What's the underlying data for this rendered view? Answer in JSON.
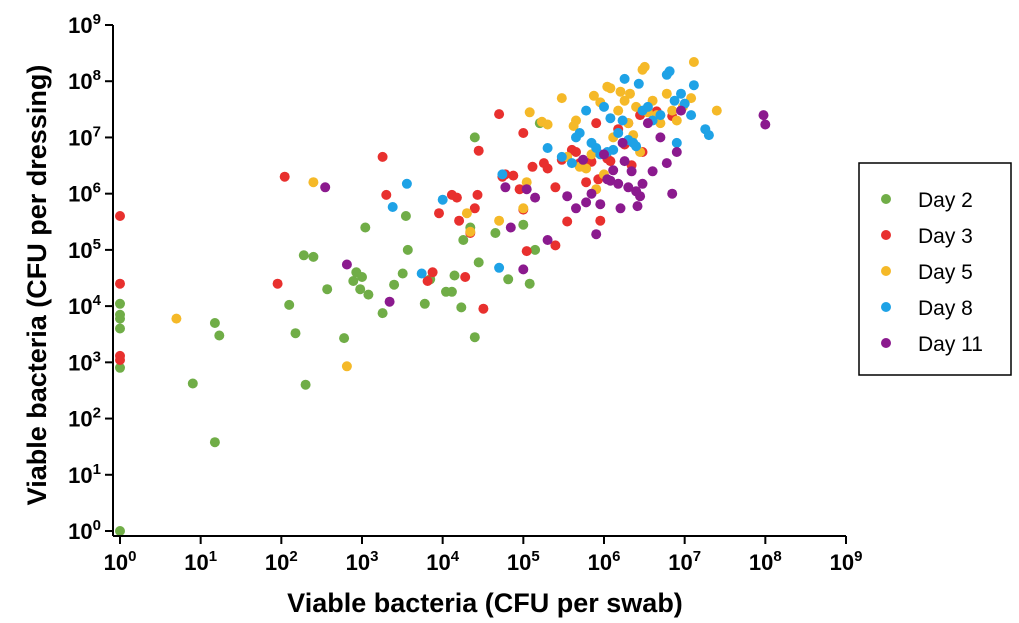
{
  "chart_data": {
    "type": "scatter",
    "xlabel": "Viable bacteria (CFU per swab)",
    "ylabel": "Viable bacteria (CFU per dressing)",
    "xscale": "log",
    "yscale": "log",
    "xlim": [
      1,
      1000000000
    ],
    "ylim": [
      1,
      1000000000
    ],
    "x_ticks": [
      "10^0",
      "10^1",
      "10^2",
      "10^3",
      "10^4",
      "10^5",
      "10^6",
      "10^7",
      "10^8",
      "10^9"
    ],
    "y_ticks": [
      "10^0",
      "10^1",
      "10^2",
      "10^3",
      "10^4",
      "10^5",
      "10^6",
      "10^7",
      "10^8",
      "10^9"
    ],
    "grid": false,
    "legend_position": "right",
    "series": [
      {
        "name": "Day 2",
        "color": "#70ad47",
        "points": [
          [
            1,
            1
          ],
          [
            1,
            800
          ],
          [
            1,
            4000
          ],
          [
            1,
            6000
          ],
          [
            1,
            7000
          ],
          [
            1,
            11000
          ],
          [
            8,
            420
          ],
          [
            15,
            38
          ],
          [
            15,
            5000
          ],
          [
            17,
            3000
          ],
          [
            125,
            10500
          ],
          [
            150,
            3300
          ],
          [
            190,
            80000
          ],
          [
            200,
            400
          ],
          [
            250,
            75000
          ],
          [
            370,
            20000
          ],
          [
            600,
            2700
          ],
          [
            780,
            28000
          ],
          [
            850,
            40000
          ],
          [
            950,
            20000
          ],
          [
            1000,
            33000
          ],
          [
            1100,
            250000
          ],
          [
            1200,
            16000
          ],
          [
            1800,
            7500
          ],
          [
            2500,
            24000
          ],
          [
            3200,
            38000
          ],
          [
            3500,
            400000
          ],
          [
            3700,
            100000
          ],
          [
            6000,
            11000
          ],
          [
            7000,
            30000
          ],
          [
            11000,
            18000
          ],
          [
            13000,
            18000
          ],
          [
            14000,
            35000
          ],
          [
            17000,
            9500
          ],
          [
            18000,
            150000
          ],
          [
            22000,
            250000
          ],
          [
            25000,
            10000000
          ],
          [
            25000,
            2800
          ],
          [
            28000,
            60000
          ],
          [
            45000,
            200000
          ],
          [
            65000,
            30000
          ],
          [
            100000,
            280000
          ],
          [
            120000,
            25000
          ],
          [
            140000,
            100000
          ],
          [
            160000,
            18000000
          ]
        ]
      },
      {
        "name": "Day 3",
        "color": "#e8302e",
        "points": [
          [
            1,
            400000
          ],
          [
            1,
            25000
          ],
          [
            1,
            1100
          ],
          [
            1,
            1300
          ],
          [
            90,
            25000
          ],
          [
            110,
            2000000
          ],
          [
            1800,
            4500000
          ],
          [
            2000,
            950000
          ],
          [
            6500,
            28000
          ],
          [
            7500,
            40000
          ],
          [
            9000,
            450000
          ],
          [
            13000,
            950000
          ],
          [
            15000,
            850000
          ],
          [
            16000,
            330000
          ],
          [
            19000,
            33000
          ],
          [
            22000,
            200000
          ],
          [
            25000,
            550000
          ],
          [
            27000,
            950000
          ],
          [
            28000,
            5800000
          ],
          [
            32000,
            9000
          ],
          [
            50000,
            26000000
          ],
          [
            55000,
            2000000
          ],
          [
            60000,
            2200000
          ],
          [
            75000,
            2100000
          ],
          [
            90000,
            1200000
          ],
          [
            100000,
            12000000
          ],
          [
            100000,
            520000
          ],
          [
            110000,
            95000
          ],
          [
            130000,
            3000000
          ],
          [
            180000,
            3500000
          ],
          [
            200000,
            2800000
          ],
          [
            250000,
            120000
          ],
          [
            250000,
            1300000
          ],
          [
            300000,
            4000000
          ],
          [
            350000,
            320000
          ],
          [
            400000,
            6000000
          ],
          [
            450000,
            5500000
          ],
          [
            500000,
            3500000
          ],
          [
            550000,
            3800000
          ],
          [
            600000,
            1600000
          ],
          [
            700000,
            3700000
          ],
          [
            800000,
            18000000
          ],
          [
            850000,
            1800000
          ],
          [
            900000,
            330000
          ],
          [
            1100000,
            4200000
          ],
          [
            1200000,
            3800000
          ],
          [
            1500000,
            14000000
          ],
          [
            1800000,
            7500000
          ],
          [
            2000000,
            18000000
          ],
          [
            2200000,
            3200000
          ],
          [
            2800000,
            25000000
          ],
          [
            3000000,
            5500000
          ],
          [
            4500000,
            29000000
          ],
          [
            7000000,
            24000000
          ]
        ]
      },
      {
        "name": "Day 5",
        "color": "#f5b928",
        "points": [
          [
            5,
            6000
          ],
          [
            250,
            1600000
          ],
          [
            650,
            850
          ],
          [
            20000,
            450000
          ],
          [
            22000,
            210000
          ],
          [
            50000,
            330000
          ],
          [
            100000,
            550000
          ],
          [
            110000,
            1600000
          ],
          [
            120000,
            28000000
          ],
          [
            170000,
            19000000
          ],
          [
            200000,
            17000000
          ],
          [
            300000,
            50000000
          ],
          [
            350000,
            4500000
          ],
          [
            420000,
            16000000
          ],
          [
            450000,
            20000000
          ],
          [
            500000,
            3000000
          ],
          [
            600000,
            2800000
          ],
          [
            700000,
            5000000
          ],
          [
            750000,
            55000000
          ],
          [
            800000,
            1200000
          ],
          [
            900000,
            42000000
          ],
          [
            1000000,
            2200000
          ],
          [
            1100000,
            80000000
          ],
          [
            1200000,
            75000000
          ],
          [
            1300000,
            10000000
          ],
          [
            1500000,
            30000000
          ],
          [
            1600000,
            65000000
          ],
          [
            1800000,
            45000000
          ],
          [
            2000000,
            18000000
          ],
          [
            2100000,
            60000000
          ],
          [
            2300000,
            11000000
          ],
          [
            2500000,
            35000000
          ],
          [
            2800000,
            5500000
          ],
          [
            3000000,
            160000000
          ],
          [
            3200000,
            180000000
          ],
          [
            3500000,
            28000000
          ],
          [
            4000000,
            45000000
          ],
          [
            4500000,
            25000000
          ],
          [
            5000000,
            18000000
          ],
          [
            6000000,
            60000000
          ],
          [
            7000000,
            30000000
          ],
          [
            8000000,
            20000000
          ],
          [
            9500000,
            35000000
          ],
          [
            12000000,
            50000000
          ],
          [
            13000000,
            220000000
          ],
          [
            25000000,
            30000000
          ]
        ]
      },
      {
        "name": "Day 8",
        "color": "#1ea2e6",
        "points": [
          [
            2400,
            580000
          ],
          [
            3600,
            1500000
          ],
          [
            5500,
            38000
          ],
          [
            10000,
            780000
          ],
          [
            50000,
            48000
          ],
          [
            55000,
            2200000
          ],
          [
            200000,
            6500000
          ],
          [
            300000,
            4500000
          ],
          [
            400000,
            3500000
          ],
          [
            450000,
            10000000
          ],
          [
            500000,
            12000000
          ],
          [
            600000,
            30000000
          ],
          [
            700000,
            8000000
          ],
          [
            800000,
            6500000
          ],
          [
            900000,
            5000000
          ],
          [
            1000000,
            35000000
          ],
          [
            1100000,
            5500000
          ],
          [
            1200000,
            22000000
          ],
          [
            1300000,
            6000000
          ],
          [
            1500000,
            12000000
          ],
          [
            1700000,
            20000000
          ],
          [
            1800000,
            110000000
          ],
          [
            2000000,
            9000000
          ],
          [
            2300000,
            8000000
          ],
          [
            2500000,
            7000000
          ],
          [
            2700000,
            90000000
          ],
          [
            3000000,
            30000000
          ],
          [
            3500000,
            35000000
          ],
          [
            4000000,
            20000000
          ],
          [
            5000000,
            25000000
          ],
          [
            6000000,
            130000000
          ],
          [
            6500000,
            150000000
          ],
          [
            7500000,
            45000000
          ],
          [
            8000000,
            8000000
          ],
          [
            9000000,
            60000000
          ],
          [
            10000000,
            40000000
          ],
          [
            12000000,
            25000000
          ],
          [
            13000000,
            85000000
          ],
          [
            18000000,
            14000000
          ],
          [
            20000000,
            11000000
          ]
        ]
      },
      {
        "name": "Day 11",
        "color": "#8b1a8e",
        "points": [
          [
            350,
            1300000
          ],
          [
            650,
            55000
          ],
          [
            2200,
            12000
          ],
          [
            60000,
            1300000
          ],
          [
            70000,
            250000
          ],
          [
            100000,
            45000
          ],
          [
            110000,
            1200000
          ],
          [
            140000,
            850000
          ],
          [
            200000,
            150000
          ],
          [
            350000,
            900000
          ],
          [
            450000,
            550000
          ],
          [
            550000,
            4000000
          ],
          [
            600000,
            700000
          ],
          [
            700000,
            1000000
          ],
          [
            800000,
            190000
          ],
          [
            900000,
            650000
          ],
          [
            1000000,
            5000000
          ],
          [
            1100000,
            1800000
          ],
          [
            1200000,
            1700000
          ],
          [
            1300000,
            2600000
          ],
          [
            1500000,
            1500000
          ],
          [
            1600000,
            550000
          ],
          [
            1700000,
            8000000
          ],
          [
            1800000,
            3800000
          ],
          [
            2000000,
            1300000
          ],
          [
            2200000,
            2500000
          ],
          [
            2500000,
            1100000
          ],
          [
            2600000,
            600000
          ],
          [
            2800000,
            900000
          ],
          [
            3000000,
            1500000
          ],
          [
            3500000,
            18000000
          ],
          [
            4000000,
            2500000
          ],
          [
            5000000,
            10000000
          ],
          [
            6000000,
            3500000
          ],
          [
            7000000,
            1000000
          ],
          [
            8000000,
            5500000
          ],
          [
            9000000,
            30000000
          ],
          [
            95000000,
            25000000
          ],
          [
            100000000,
            17000000
          ]
        ]
      }
    ]
  }
}
